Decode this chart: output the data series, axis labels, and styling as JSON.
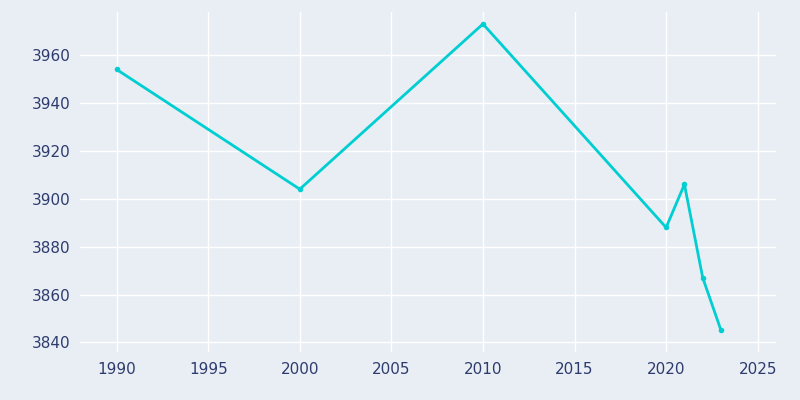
{
  "years": [
    1990,
    2000,
    2010,
    2020,
    2021,
    2022,
    2023
  ],
  "population": [
    3954,
    3904,
    3973,
    3888,
    3906,
    3867,
    3845
  ],
  "line_color": "#00CED1",
  "marker": "o",
  "marker_size": 4,
  "line_width": 2,
  "background_color": "#E8EEF4",
  "grid_color": "#ffffff",
  "tick_color": "#2E3B6E",
  "xlim": [
    1988,
    2026
  ],
  "ylim": [
    3836,
    3978
  ],
  "xticks": [
    1990,
    1995,
    2000,
    2005,
    2010,
    2015,
    2020,
    2025
  ],
  "yticks": [
    3840,
    3860,
    3880,
    3900,
    3920,
    3940,
    3960
  ],
  "tick_fontsize": 11
}
